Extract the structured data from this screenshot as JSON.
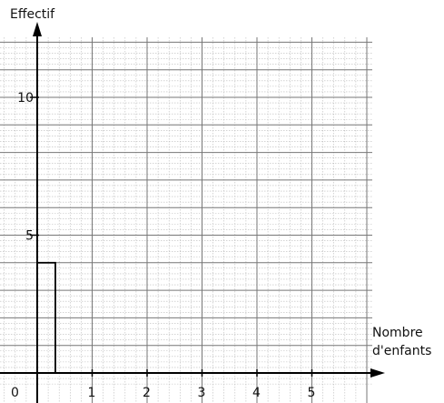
{
  "chart_data": {
    "type": "bar",
    "xlabel_line1": "Nombre",
    "xlabel_line2": "d'enfants",
    "ylabel": "Effectif",
    "origin_label": "0",
    "x_ticks": [
      "1",
      "2",
      "3",
      "4",
      "5"
    ],
    "y_ticks": [
      "5",
      "10"
    ],
    "xlim": [
      0,
      6
    ],
    "ylim": [
      0,
      12
    ],
    "grid": true,
    "bars": [
      {
        "x_start": 0,
        "x_end": 0.33,
        "value": 4
      }
    ]
  }
}
